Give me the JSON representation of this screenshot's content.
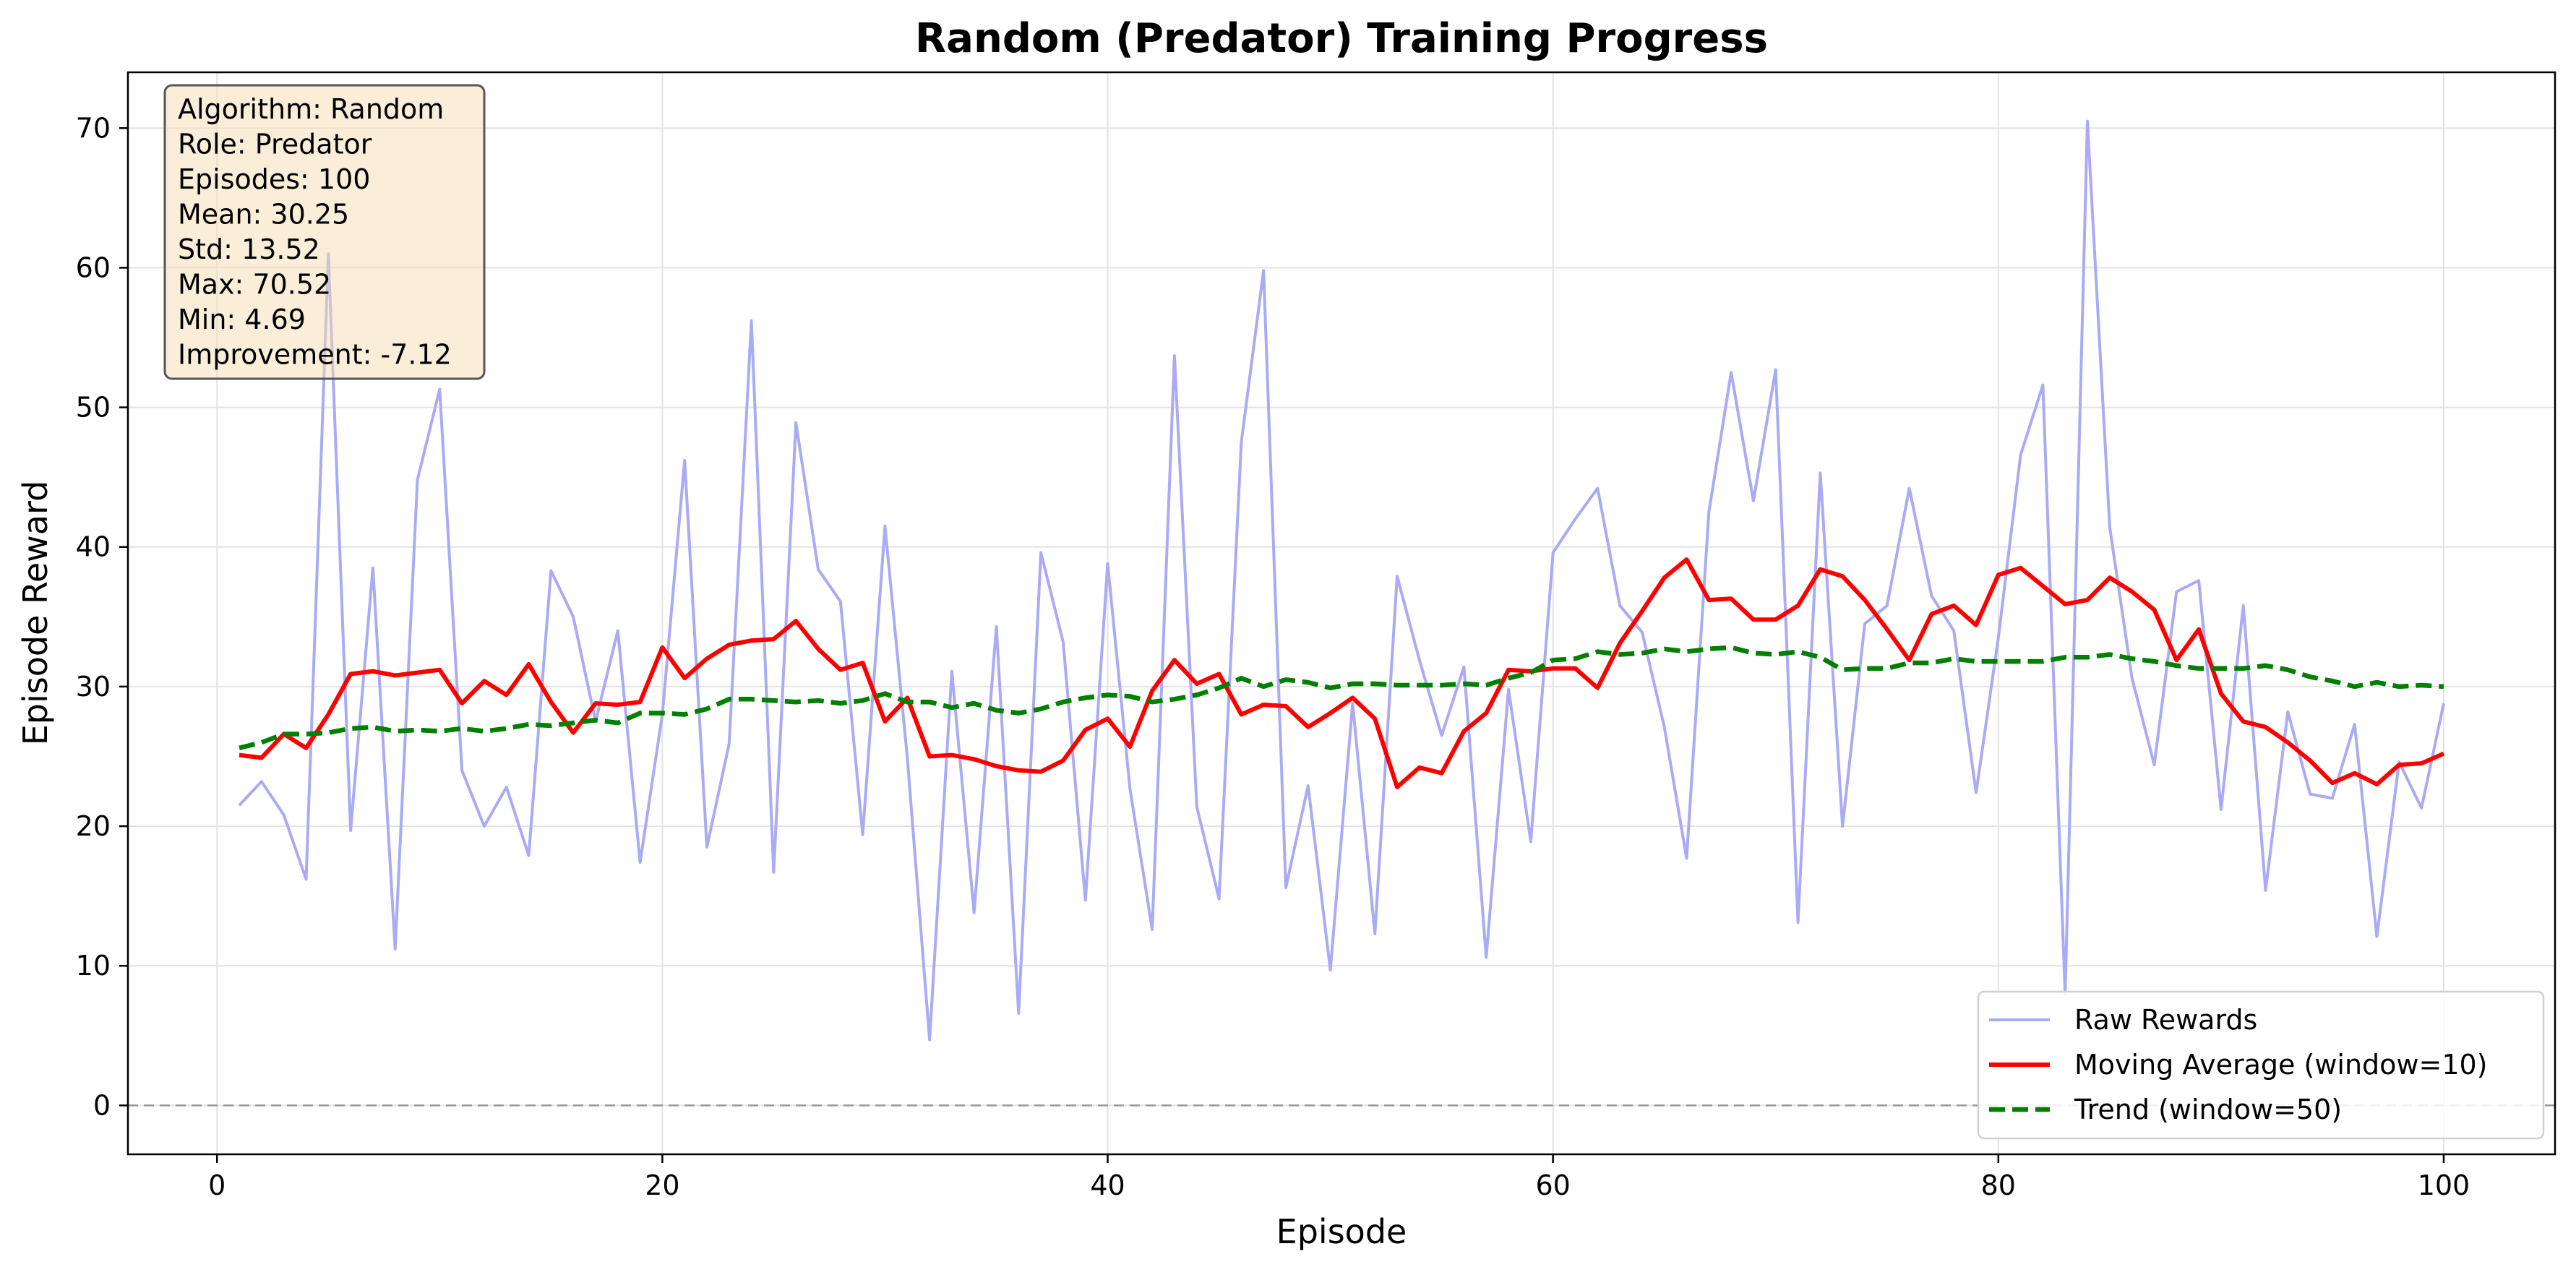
{
  "chart_data": {
    "type": "line",
    "title": "Random (Predator) Training Progress",
    "xlabel": "Episode",
    "ylabel": "Episode Reward",
    "xlim": [
      -4,
      105
    ],
    "ylim": [
      -3.5,
      74
    ],
    "xticks": [
      0,
      20,
      40,
      60,
      80,
      100
    ],
    "yticks": [
      0,
      10,
      20,
      30,
      40,
      50,
      60,
      70
    ],
    "grid": true,
    "zero_line": 0,
    "legend_position": "lower-right",
    "stats_box": {
      "lines": [
        "Algorithm: Random",
        "Role: Predator",
        "Episodes: 100",
        "Mean: 30.25",
        "Std: 13.52",
        "Max: 70.52",
        "Min: 4.69",
        "Improvement: -7.12"
      ]
    },
    "x": [
      1,
      2,
      3,
      4,
      5,
      6,
      7,
      8,
      9,
      10,
      11,
      12,
      13,
      14,
      15,
      16,
      17,
      18,
      19,
      20,
      21,
      22,
      23,
      24,
      25,
      26,
      27,
      28,
      29,
      30,
      31,
      32,
      33,
      34,
      35,
      36,
      37,
      38,
      39,
      40,
      41,
      42,
      43,
      44,
      45,
      46,
      47,
      48,
      49,
      50,
      51,
      52,
      53,
      54,
      55,
      56,
      57,
      58,
      59,
      60,
      61,
      62,
      63,
      64,
      65,
      66,
      67,
      68,
      69,
      70,
      71,
      72,
      73,
      74,
      75,
      76,
      77,
      78,
      79,
      80,
      81,
      82,
      83,
      84,
      85,
      86,
      87,
      88,
      89,
      90,
      91,
      92,
      93,
      94,
      95,
      96,
      97,
      98,
      99,
      100
    ],
    "series": [
      {
        "name": "Raw Rewards",
        "color": "#aaaaf5",
        "style": "solid",
        "values": [
          21.5,
          23.2,
          20.8,
          16.2,
          61.0,
          19.7,
          38.5,
          11.2,
          44.8,
          51.3,
          24.0,
          20.0,
          22.8,
          17.9,
          38.3,
          35.0,
          27.5,
          34.0,
          17.4,
          28.0,
          46.2,
          18.5,
          25.9,
          56.2,
          16.7,
          48.9,
          38.4,
          36.1,
          19.4,
          41.5,
          24.9,
          4.7,
          31.1,
          13.8,
          34.3,
          6.6,
          39.6,
          33.2,
          14.7,
          38.8,
          22.7,
          12.6,
          53.7,
          21.4,
          14.8,
          47.5,
          59.8,
          15.6,
          22.9,
          9.7,
          28.8,
          12.3,
          37.9,
          31.9,
          26.5,
          31.4,
          10.6,
          29.8,
          18.9,
          39.6,
          42.0,
          44.2,
          35.8,
          33.9,
          27.1,
          17.7,
          42.5,
          52.5,
          43.3,
          52.7,
          13.1,
          45.3,
          20.0,
          34.5,
          35.8,
          44.2,
          36.5,
          34.0,
          22.4,
          33.5,
          46.6,
          51.6,
          7.9,
          70.5,
          41.4,
          30.6,
          24.4,
          36.8,
          37.6,
          21.2,
          35.8,
          15.4,
          28.2,
          22.3,
          22.0,
          27.3,
          12.1,
          24.6,
          21.3,
          28.8
        ]
      },
      {
        "name": "Moving Average (window=10)",
        "color": "#ff0000",
        "style": "solid",
        "values": [
          25.1,
          24.9,
          26.6,
          25.6,
          28.0,
          30.9,
          31.1,
          30.8,
          31.0,
          31.2,
          28.8,
          30.4,
          29.4,
          31.6,
          28.9,
          26.7,
          28.8,
          28.7,
          28.9,
          32.8,
          30.6,
          32.0,
          33.0,
          33.3,
          33.4,
          34.7,
          32.7,
          31.2,
          31.7,
          27.5,
          29.2,
          25.0,
          25.1,
          24.8,
          24.3,
          24.0,
          23.9,
          24.7,
          26.9,
          27.7,
          25.7,
          29.7,
          31.9,
          30.2,
          30.9,
          28.0,
          28.7,
          28.6,
          27.1,
          28.1,
          29.2,
          27.7,
          22.8,
          24.2,
          23.8,
          26.8,
          28.1,
          31.2,
          31.1,
          31.3,
          31.3,
          29.9,
          33.1,
          35.4,
          37.8,
          39.1,
          36.2,
          36.3,
          34.8,
          34.8,
          35.8,
          38.4,
          37.9,
          36.2,
          34.1,
          31.9,
          35.2,
          35.8,
          34.4,
          38.0,
          38.5,
          37.2,
          35.9,
          36.2,
          37.8,
          36.8,
          35.5,
          31.9,
          34.1,
          29.5,
          27.5,
          27.1,
          26.0,
          24.7,
          23.1,
          23.8,
          23.0,
          24.4,
          24.5,
          25.2
        ]
      },
      {
        "name": "Trend (window=50)",
        "color": "#007f00",
        "style": "dashed",
        "values": [
          25.6,
          26.0,
          26.6,
          26.6,
          26.7,
          27.0,
          27.1,
          26.8,
          26.9,
          26.8,
          27.0,
          26.8,
          27.0,
          27.3,
          27.2,
          27.4,
          27.6,
          27.4,
          28.1,
          28.1,
          28.0,
          28.4,
          29.1,
          29.1,
          29.0,
          28.9,
          29.0,
          28.8,
          29.0,
          29.5,
          28.9,
          28.9,
          28.5,
          28.8,
          28.3,
          28.1,
          28.4,
          28.9,
          29.2,
          29.4,
          29.3,
          28.9,
          29.1,
          29.4,
          29.9,
          30.6,
          30.0,
          30.5,
          30.3,
          29.9,
          30.2,
          30.2,
          30.1,
          30.1,
          30.1,
          30.2,
          30.1,
          30.6,
          31.0,
          31.9,
          32.0,
          32.5,
          32.3,
          32.4,
          32.7,
          32.5,
          32.7,
          32.8,
          32.4,
          32.3,
          32.5,
          32.1,
          31.2,
          31.3,
          31.3,
          31.7,
          31.7,
          32.0,
          31.8,
          31.8,
          31.8,
          31.8,
          32.1,
          32.1,
          32.3,
          32.0,
          31.8,
          31.5,
          31.3,
          31.3,
          31.3,
          31.5,
          31.2,
          30.7,
          30.4,
          30.0,
          30.3,
          30.0,
          30.1,
          30.0
        ]
      }
    ]
  }
}
